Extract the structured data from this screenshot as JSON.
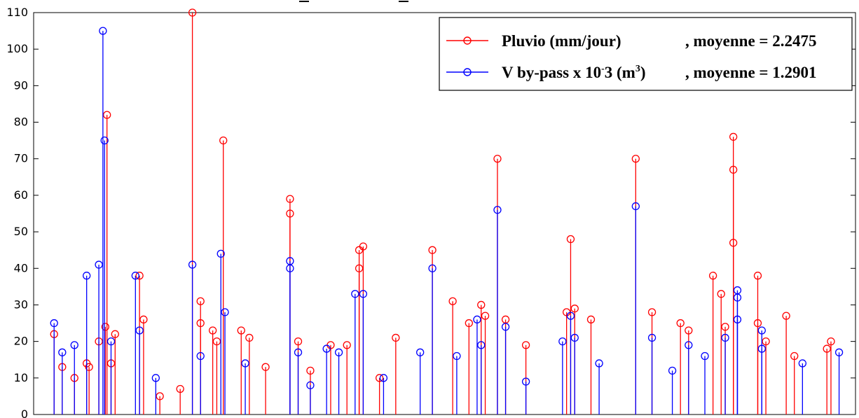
{
  "chart_data": {
    "type": "stem",
    "ylim": [
      0,
      110
    ],
    "yticks": [
      0,
      10,
      20,
      30,
      40,
      50,
      60,
      70,
      80,
      90,
      100,
      110
    ],
    "grid": false,
    "legend_position": "top-right",
    "series": [
      {
        "label": "Pluvio (mm/jour)",
        "stat": ", moyenne = 2.2475",
        "color": "#ff0000",
        "stems": [
          [
            0.02,
            22
          ],
          [
            0.03,
            13
          ],
          [
            0.045,
            10
          ],
          [
            0.06,
            14
          ],
          [
            0.063,
            13
          ],
          [
            0.075,
            20
          ],
          [
            0.083,
            24
          ],
          [
            0.085,
            82
          ],
          [
            0.09,
            14
          ],
          [
            0.095,
            22
          ],
          [
            0.125,
            38
          ],
          [
            0.13,
            26
          ],
          [
            0.15,
            5
          ],
          [
            0.175,
            7
          ],
          [
            0.19,
            110
          ],
          [
            0.2,
            31
          ],
          [
            0.2,
            25
          ],
          [
            0.215,
            23
          ],
          [
            0.22,
            20
          ],
          [
            0.228,
            75
          ],
          [
            0.25,
            23
          ],
          [
            0.26,
            21
          ],
          [
            0.28,
            13
          ],
          [
            0.31,
            59
          ],
          [
            0.31,
            55
          ],
          [
            0.32,
            20
          ],
          [
            0.335,
            12
          ],
          [
            0.36,
            19
          ],
          [
            0.38,
            19
          ],
          [
            0.395,
            45
          ],
          [
            0.395,
            40
          ],
          [
            0.4,
            46
          ],
          [
            0.42,
            10
          ],
          [
            0.44,
            21
          ],
          [
            0.485,
            45
          ],
          [
            0.51,
            31
          ],
          [
            0.53,
            25
          ],
          [
            0.545,
            30
          ],
          [
            0.55,
            27
          ],
          [
            0.565,
            70
          ],
          [
            0.575,
            26
          ],
          [
            0.6,
            19
          ],
          [
            0.65,
            28
          ],
          [
            0.655,
            48
          ],
          [
            0.66,
            29
          ],
          [
            0.68,
            26
          ],
          [
            0.735,
            70
          ],
          [
            0.755,
            28
          ],
          [
            0.79,
            25
          ],
          [
            0.8,
            23
          ],
          [
            0.83,
            38
          ],
          [
            0.84,
            33
          ],
          [
            0.845,
            24
          ],
          [
            0.855,
            76
          ],
          [
            0.855,
            67
          ],
          [
            0.855,
            47
          ],
          [
            0.885,
            38
          ],
          [
            0.885,
            25
          ],
          [
            0.895,
            20
          ],
          [
            0.92,
            27
          ],
          [
            0.93,
            16
          ],
          [
            0.97,
            18
          ],
          [
            0.975,
            20
          ]
        ]
      },
      {
        "label": "V by-pass x 10-3 (m3)",
        "stat": ", moyenne = 1.2901",
        "color": "#0000ff",
        "stems": [
          [
            0.02,
            25
          ],
          [
            0.03,
            17
          ],
          [
            0.045,
            19
          ],
          [
            0.06,
            38
          ],
          [
            0.075,
            41
          ],
          [
            0.08,
            105
          ],
          [
            0.082,
            75
          ],
          [
            0.09,
            20
          ],
          [
            0.12,
            38
          ],
          [
            0.125,
            23
          ],
          [
            0.145,
            10
          ],
          [
            0.19,
            41
          ],
          [
            0.2,
            16
          ],
          [
            0.225,
            44
          ],
          [
            0.23,
            28
          ],
          [
            0.255,
            14
          ],
          [
            0.31,
            42
          ],
          [
            0.31,
            40
          ],
          [
            0.32,
            17
          ],
          [
            0.335,
            8
          ],
          [
            0.355,
            18
          ],
          [
            0.37,
            17
          ],
          [
            0.39,
            33
          ],
          [
            0.4,
            33
          ],
          [
            0.425,
            10
          ],
          [
            0.47,
            17
          ],
          [
            0.485,
            40
          ],
          [
            0.515,
            16
          ],
          [
            0.54,
            26
          ],
          [
            0.545,
            19
          ],
          [
            0.565,
            56
          ],
          [
            0.575,
            24
          ],
          [
            0.6,
            9
          ],
          [
            0.645,
            20
          ],
          [
            0.655,
            27
          ],
          [
            0.66,
            21
          ],
          [
            0.69,
            14
          ],
          [
            0.735,
            57
          ],
          [
            0.755,
            21
          ],
          [
            0.78,
            12
          ],
          [
            0.8,
            19
          ],
          [
            0.82,
            16
          ],
          [
            0.845,
            21
          ],
          [
            0.86,
            34
          ],
          [
            0.86,
            32
          ],
          [
            0.86,
            26
          ],
          [
            0.89,
            23
          ],
          [
            0.89,
            18
          ],
          [
            0.94,
            14
          ],
          [
            0.985,
            17
          ]
        ]
      }
    ]
  }
}
